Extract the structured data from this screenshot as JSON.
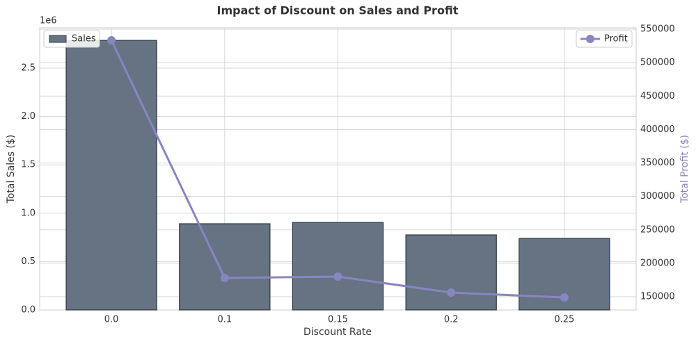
{
  "chart_data": {
    "type": "bar",
    "title": "Impact of Discount on Sales and Profit",
    "x_label": "Discount Rate",
    "y_label": "Total Sales ($)",
    "y2_label": "Total Profit ($)",
    "y_offset_label": "1e6",
    "categories": [
      "0.0",
      "0.1",
      "0.15",
      "0.2",
      "0.25"
    ],
    "series": [
      {
        "name": "Sales",
        "type": "bar",
        "color": "#657383",
        "edgecolor": "#2f3845",
        "legend_loc": "upper left",
        "values": [
          2787000,
          891000,
          905000,
          776000,
          740000
        ]
      },
      {
        "name": "Profit",
        "type": "line",
        "axis": "y2",
        "color": "#8886c0",
        "legend_loc": "upper right",
        "values": [
          533400,
          178050,
          180130,
          156200,
          148900
        ]
      }
    ],
    "ylim": [
      0,
      2917000
    ],
    "yticks": [
      {
        "value": 0,
        "label": "0.0"
      },
      {
        "value": 500000,
        "label": "0.5"
      },
      {
        "value": 1000000,
        "label": "1.0"
      },
      {
        "value": 1500000,
        "label": "1.5"
      },
      {
        "value": 2000000,
        "label": "2.0"
      },
      {
        "value": 2500000,
        "label": "2.5"
      }
    ],
    "y2lim": [
      130260,
      552078
    ],
    "y2ticks": [
      150000,
      200000,
      250000,
      300000,
      350000,
      400000,
      450000,
      500000,
      550000
    ],
    "grid": true
  }
}
